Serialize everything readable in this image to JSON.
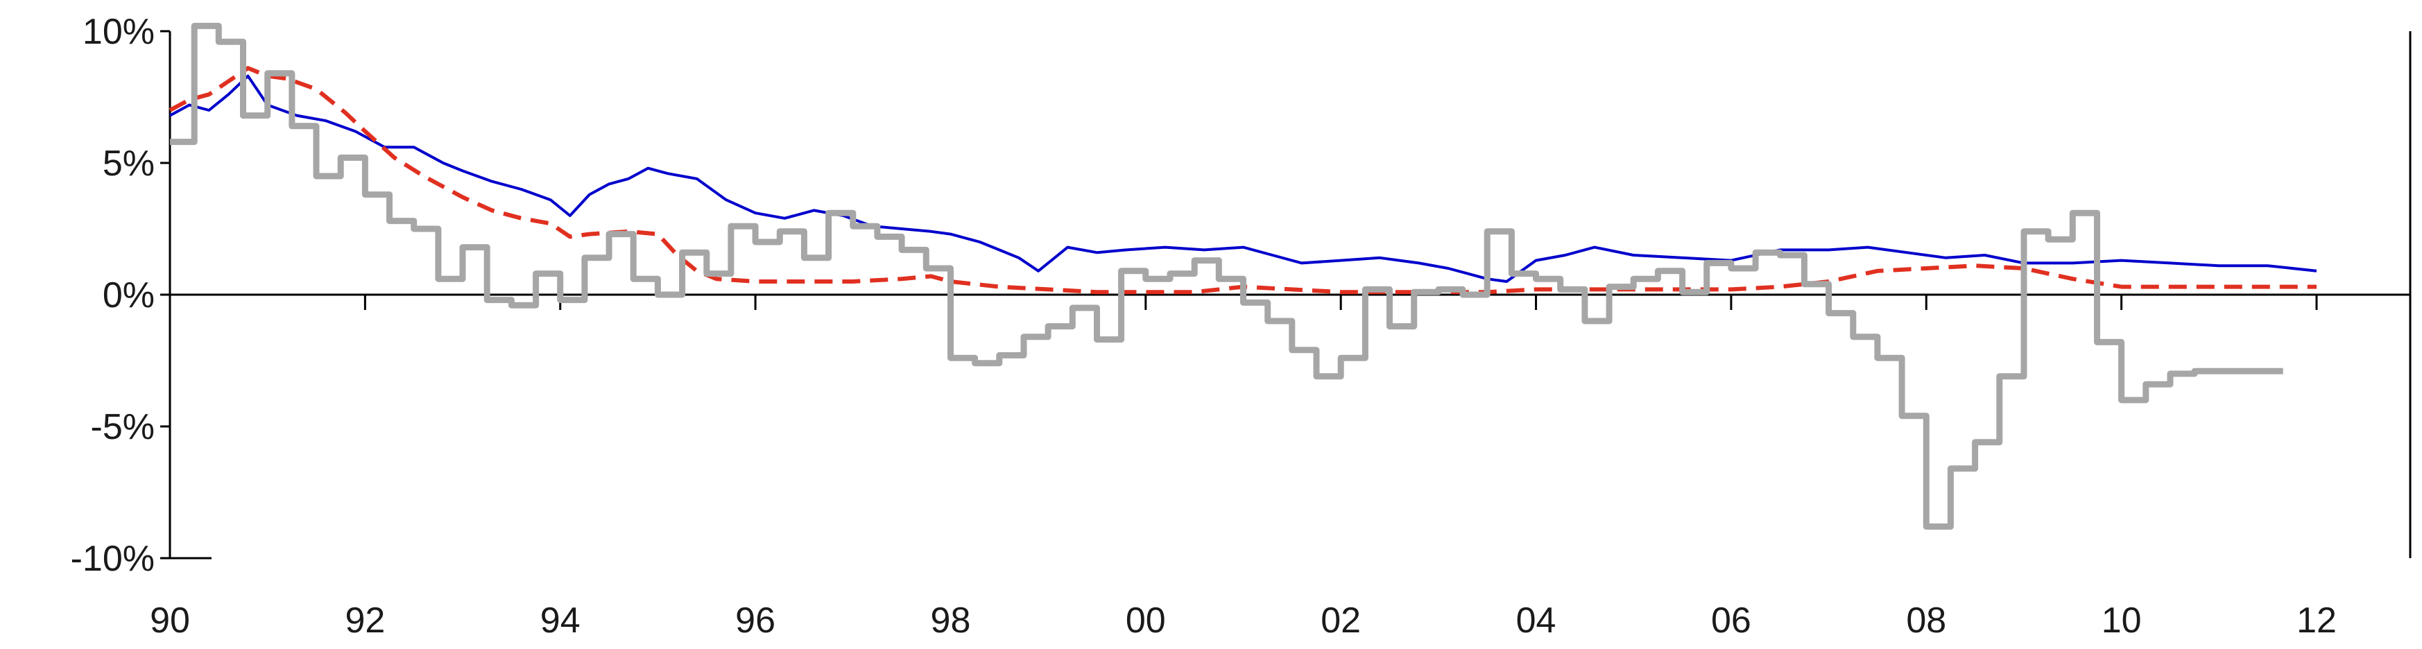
{
  "chart_data": {
    "type": "line",
    "title": "",
    "xlabel": "",
    "ylabel": "",
    "ylim": [
      -10,
      10
    ],
    "xlim": [
      1990,
      2012
    ],
    "y_ticks": [
      10,
      5,
      0,
      -5,
      -10
    ],
    "y_tick_labels": [
      "10%",
      "5%",
      "0%",
      "-5%",
      "-10%"
    ],
    "x_ticks": [
      1990,
      1992,
      1994,
      1996,
      1998,
      2000,
      2002,
      2004,
      2006,
      2008,
      2010,
      2012
    ],
    "x_tick_labels": [
      "90",
      "92",
      "94",
      "96",
      "98",
      "00",
      "02",
      "04",
      "06",
      "08",
      "10",
      "12"
    ],
    "grid": false,
    "legend": "none",
    "series": [
      {
        "color": "#0000cc",
        "style": "solid",
        "x": [
          1990.0,
          1990.2,
          1990.4,
          1990.6,
          1990.8,
          1991.0,
          1991.3,
          1991.6,
          1991.9,
          1992.2,
          1992.5,
          1992.8,
          1993.0,
          1993.3,
          1993.6,
          1993.9,
          1994.1,
          1994.3,
          1994.5,
          1994.7,
          1994.9,
          1995.1,
          1995.4,
          1995.7,
          1996.0,
          1996.3,
          1996.6,
          1996.9,
          1997.2,
          1997.5,
          1997.8,
          1998.0,
          1998.3,
          1998.5,
          1998.7,
          1998.9,
          1999.2,
          1999.5,
          1999.8,
          2000.2,
          2000.6,
          2001.0,
          2001.3,
          2001.6,
          2002.0,
          2002.4,
          2002.8,
          2003.1,
          2003.3,
          2003.5,
          2003.7,
          2004.0,
          2004.3,
          2004.6,
          2005.0,
          2005.5,
          2006.0,
          2006.5,
          2007.0,
          2007.4,
          2007.8,
          2008.2,
          2008.6,
          2009.0,
          2009.5,
          2010.0,
          2010.5,
          2011.0,
          2011.5,
          2012.0
        ],
        "y": [
          6.8,
          7.2,
          7.0,
          7.6,
          8.3,
          7.2,
          6.8,
          6.6,
          6.2,
          5.6,
          5.6,
          5.0,
          4.7,
          4.3,
          4.0,
          3.6,
          3.0,
          3.8,
          4.2,
          4.4,
          4.8,
          4.6,
          4.4,
          3.6,
          3.1,
          2.9,
          3.2,
          3.0,
          2.6,
          2.5,
          2.4,
          2.3,
          2.0,
          1.7,
          1.4,
          0.9,
          1.8,
          1.6,
          1.7,
          1.8,
          1.7,
          1.8,
          1.5,
          1.2,
          1.3,
          1.4,
          1.2,
          1.0,
          0.8,
          0.6,
          0.5,
          1.3,
          1.5,
          1.8,
          1.5,
          1.4,
          1.3,
          1.7,
          1.7,
          1.8,
          1.6,
          1.4,
          1.5,
          1.2,
          1.2,
          1.3,
          1.2,
          1.1,
          1.1,
          0.9
        ]
      },
      {
        "color": "#e03020",
        "style": "dashed",
        "x": [
          1990.0,
          1990.2,
          1990.4,
          1990.6,
          1990.8,
          1991.0,
          1991.2,
          1991.5,
          1991.8,
          1992.0,
          1992.3,
          1992.6,
          1993.0,
          1993.3,
          1993.6,
          1993.9,
          1994.1,
          1994.3,
          1994.7,
          1995.0,
          1995.2,
          1995.4,
          1995.6,
          1996.0,
          1996.5,
          1997.0,
          1997.5,
          1997.8,
          1998.0,
          1998.5,
          1999.0,
          1999.5,
          2000.0,
          2000.5,
          2001.0,
          2001.5,
          2002.0,
          2003.0,
          2003.5,
          2004.0,
          2005.0,
          2006.0,
          2006.5,
          2007.0,
          2007.5,
          2008.0,
          2008.5,
          2009.0,
          2009.5,
          2010.0,
          2010.5,
          2011.0,
          2012.0
        ],
        "y": [
          7.0,
          7.4,
          7.6,
          8.1,
          8.6,
          8.3,
          8.2,
          7.8,
          6.9,
          6.2,
          5.2,
          4.5,
          3.7,
          3.2,
          2.9,
          2.7,
          2.2,
          2.3,
          2.4,
          2.3,
          1.5,
          0.9,
          0.6,
          0.5,
          0.5,
          0.5,
          0.6,
          0.7,
          0.5,
          0.3,
          0.2,
          0.1,
          0.1,
          0.1,
          0.3,
          0.2,
          0.1,
          0.1,
          0.1,
          0.2,
          0.2,
          0.2,
          0.3,
          0.5,
          0.9,
          1.0,
          1.1,
          1.0,
          0.6,
          0.3,
          0.3,
          0.3,
          0.3
        ]
      },
      {
        "color": "#a6a6a6",
        "style": "solid-step",
        "x": [
          1990.0,
          1990.25,
          1990.5,
          1990.75,
          1991.0,
          1991.25,
          1991.5,
          1991.75,
          1992.0,
          1992.25,
          1992.5,
          1992.75,
          1993.0,
          1993.25,
          1993.5,
          1993.75,
          1994.0,
          1994.25,
          1994.5,
          1994.75,
          1995.0,
          1995.25,
          1995.5,
          1995.75,
          1996.0,
          1996.25,
          1996.5,
          1996.75,
          1997.0,
          1997.25,
          1997.5,
          1997.75,
          1998.0,
          1998.25,
          1998.5,
          1998.75,
          1999.0,
          1999.25,
          1999.5,
          1999.75,
          2000.0,
          2000.25,
          2000.5,
          2000.75,
          2001.0,
          2001.25,
          2001.5,
          2001.75,
          2002.0,
          2002.25,
          2002.5,
          2002.75,
          2003.0,
          2003.25,
          2003.5,
          2003.75,
          2004.0,
          2004.25,
          2004.5,
          2004.75,
          2005.0,
          2005.25,
          2005.5,
          2005.75,
          2006.0,
          2006.25,
          2006.5,
          2006.75,
          2007.0,
          2007.25,
          2007.5,
          2007.75,
          2008.0,
          2008.25,
          2008.5,
          2008.75,
          2009.0,
          2009.25,
          2009.5,
          2009.75,
          2010.0,
          2010.25,
          2010.5,
          2010.75,
          2011.0,
          2011.25,
          2011.5
        ],
        "y": [
          5.8,
          10.2,
          9.6,
          6.8,
          8.4,
          6.4,
          4.5,
          5.2,
          3.8,
          2.8,
          2.5,
          0.6,
          1.8,
          -0.2,
          -0.4,
          0.8,
          -0.2,
          1.4,
          2.3,
          0.6,
          0.0,
          1.6,
          0.8,
          2.6,
          2.0,
          2.4,
          1.4,
          3.1,
          2.6,
          2.2,
          1.7,
          1.0,
          -2.4,
          -2.6,
          -2.3,
          -1.6,
          -1.2,
          -0.5,
          -1.7,
          0.9,
          0.6,
          0.8,
          1.3,
          0.6,
          -0.3,
          -1.0,
          -2.1,
          -3.1,
          -2.4,
          0.2,
          -1.2,
          0.1,
          0.2,
          0.0,
          2.4,
          0.8,
          0.6,
          0.2,
          -1.0,
          0.3,
          0.6,
          0.9,
          0.1,
          1.2,
          1.0,
          1.6,
          1.5,
          0.4,
          -0.7,
          -1.6,
          -2.4,
          -4.6,
          -8.8,
          -6.6,
          -5.6,
          -3.1,
          2.4,
          2.1,
          3.1,
          -1.8,
          -4.0,
          -3.4,
          -3.0,
          -2.9,
          -2.9,
          -2.9,
          -2.9
        ]
      }
    ]
  }
}
